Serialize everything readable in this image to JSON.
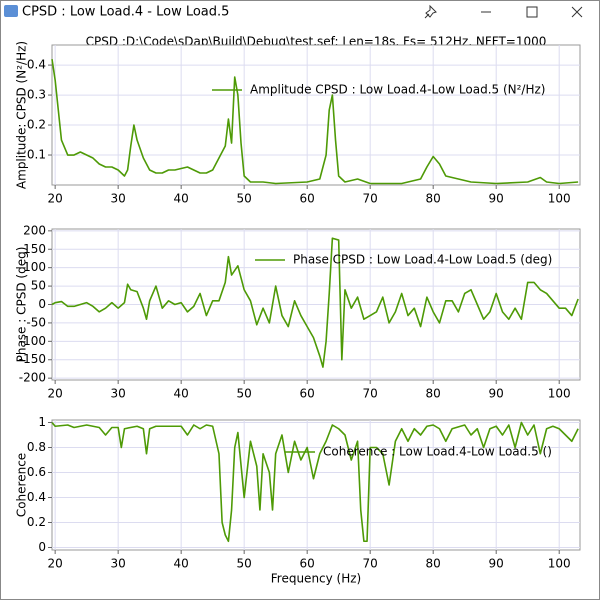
{
  "window": {
    "title": "CPSD : Low Load.4 - Low Load.5",
    "subtitle": "CPSD :D:\\Code\\sDap\\Build\\Debug\\test.sef: Len=18s, Fs= 512Hz, NFFT=1000"
  },
  "chart_data": [
    {
      "type": "line",
      "y_label": "Amplitude: CPSD (N²/Hz)",
      "x": [
        19.5,
        20,
        21,
        22,
        23,
        24,
        25,
        26,
        27,
        28,
        29,
        30,
        31,
        31.5,
        32,
        32.5,
        33,
        34,
        35,
        36,
        37,
        38,
        39,
        40,
        41,
        42,
        43,
        44,
        45,
        46,
        47,
        47.5,
        48,
        48.5,
        49,
        49.5,
        50,
        51,
        53,
        55,
        60,
        62,
        63,
        63.5,
        64,
        64.5,
        65,
        66,
        68,
        70,
        75,
        78,
        79,
        80,
        81,
        82,
        84,
        86,
        90,
        95,
        97,
        98,
        100,
        103
      ],
      "series": [
        {
          "name": "Amplitude CPSD : Low Load.4-Low Load.5 (N²/Hz)",
          "color": "#4e9a06",
          "values": [
            0.42,
            0.35,
            0.15,
            0.1,
            0.1,
            0.11,
            0.1,
            0.09,
            0.07,
            0.06,
            0.06,
            0.05,
            0.03,
            0.05,
            0.13,
            0.2,
            0.15,
            0.09,
            0.05,
            0.04,
            0.04,
            0.05,
            0.05,
            0.055,
            0.06,
            0.05,
            0.04,
            0.04,
            0.05,
            0.09,
            0.13,
            0.22,
            0.14,
            0.36,
            0.3,
            0.14,
            0.03,
            0.01,
            0.01,
            0.005,
            0.01,
            0.02,
            0.1,
            0.25,
            0.3,
            0.15,
            0.03,
            0.01,
            0.02,
            0.005,
            0.005,
            0.02,
            0.06,
            0.095,
            0.07,
            0.03,
            0.02,
            0.01,
            0.005,
            0.01,
            0.025,
            0.01,
            0.005,
            0.01
          ]
        }
      ],
      "xlim": [
        19.5,
        103.3
      ],
      "xticks": [
        20,
        30,
        40,
        50,
        60,
        70,
        80,
        90,
        100
      ],
      "ylim": [
        0,
        0.467
      ],
      "yticks": [
        0.1,
        0.2,
        0.3,
        0.4
      ],
      "grid": true
    },
    {
      "type": "line",
      "y_label": "Phase : CPSD (deg)",
      "x": [
        19.5,
        20,
        21,
        22,
        23,
        25,
        26,
        27,
        28,
        29,
        30,
        31,
        31.5,
        32,
        33,
        34,
        34.5,
        35,
        36,
        37,
        38,
        39,
        40,
        41,
        42,
        43,
        44,
        45,
        46,
        47,
        47.5,
        48,
        49,
        50,
        51,
        52,
        53,
        54,
        55,
        56,
        57,
        58,
        59,
        60,
        61,
        62,
        62.5,
        63,
        63.5,
        64,
        65,
        65.5,
        66,
        67,
        68,
        69,
        70,
        71,
        72,
        73,
        74,
        75,
        76,
        77,
        78,
        79,
        80,
        81,
        82,
        83,
        84,
        85,
        86,
        87,
        88,
        89,
        90,
        91,
        92,
        93,
        94,
        95,
        96,
        97,
        98,
        99,
        100,
        101,
        102,
        103
      ],
      "series": [
        {
          "name": "Phase CPSD : Low Load.4-Low Load.5 (deg)",
          "color": "#4e9a06",
          "values": [
            0,
            5,
            8,
            -5,
            -5,
            5,
            -5,
            -20,
            -10,
            5,
            -10,
            5,
            55,
            40,
            35,
            -10,
            -40,
            10,
            50,
            -10,
            10,
            0,
            5,
            -20,
            -5,
            30,
            -30,
            10,
            10,
            60,
            130,
            80,
            105,
            40,
            10,
            -55,
            -10,
            -50,
            50,
            -30,
            -60,
            10,
            -30,
            -60,
            -90,
            -140,
            -170,
            -100,
            30,
            180,
            175,
            -150,
            40,
            -10,
            20,
            -40,
            -30,
            -20,
            20,
            -50,
            -20,
            30,
            -30,
            -10,
            -60,
            20,
            -20,
            -50,
            10,
            10,
            -20,
            30,
            40,
            0,
            -40,
            -20,
            30,
            -20,
            -40,
            -10,
            -40,
            60,
            60,
            40,
            30,
            10,
            -10,
            -10,
            -30,
            15
          ]
        }
      ],
      "xlim": [
        19.5,
        103.3
      ],
      "xticks": [
        20,
        30,
        40,
        50,
        60,
        70,
        80,
        90,
        100
      ],
      "ylim": [
        -205,
        205
      ],
      "yticks": [
        -200,
        -150,
        -100,
        -50,
        0,
        50,
        100,
        150,
        200
      ],
      "grid": true
    },
    {
      "type": "line",
      "y_label": "Coherence",
      "x_label": "Frequency (Hz)",
      "x": [
        19.5,
        20,
        22,
        23,
        25,
        27,
        28,
        29,
        30,
        30.5,
        31,
        33,
        34,
        34.5,
        35,
        36,
        40,
        41,
        42,
        43,
        44,
        45,
        46,
        46.5,
        47,
        47.5,
        48,
        48.5,
        49,
        50,
        51,
        52,
        52.5,
        53,
        54,
        54.5,
        55,
        56,
        57,
        58,
        59,
        60,
        61,
        62,
        63,
        64,
        65,
        66,
        67,
        68,
        68.5,
        69,
        69.5,
        70,
        71,
        72,
        73,
        74,
        75,
        76,
        77,
        78,
        79,
        80,
        81,
        82,
        83,
        85,
        86,
        87,
        88,
        89,
        90,
        91,
        92,
        93,
        94,
        95,
        96,
        97,
        98,
        99,
        100,
        101,
        102,
        103
      ],
      "series": [
        {
          "name": "Coherence : Low Load.4-Low Load.5 ()",
          "color": "#4e9a06",
          "values": [
            1,
            0.97,
            0.98,
            0.96,
            0.98,
            0.96,
            0.9,
            0.96,
            0.96,
            0.8,
            0.95,
            0.97,
            0.95,
            0.75,
            0.95,
            0.97,
            0.97,
            0.9,
            0.98,
            0.95,
            0.98,
            0.97,
            0.75,
            0.2,
            0.1,
            0.05,
            0.3,
            0.8,
            0.92,
            0.4,
            0.85,
            0.65,
            0.3,
            0.75,
            0.6,
            0.3,
            0.75,
            0.9,
            0.6,
            0.85,
            0.7,
            0.8,
            0.55,
            0.75,
            0.85,
            0.98,
            0.95,
            0.9,
            0.7,
            0.85,
            0.3,
            0.05,
            0.05,
            0.8,
            0.8,
            0.75,
            0.5,
            0.85,
            0.95,
            0.85,
            0.95,
            0.9,
            0.97,
            0.98,
            0.95,
            0.85,
            0.95,
            0.98,
            0.9,
            0.95,
            0.8,
            0.95,
            0.97,
            0.9,
            0.98,
            0.8,
            1,
            0.9,
            0.98,
            0.75,
            0.95,
            0.97,
            0.95,
            0.9,
            0.85,
            0.95
          ]
        }
      ],
      "xlim": [
        19.5,
        103.3
      ],
      "xticks": [
        20,
        30,
        40,
        50,
        60,
        70,
        80,
        90,
        100
      ],
      "ylim": [
        -0.02,
        1.02
      ],
      "yticks": [
        0,
        0.2,
        0.4,
        0.6,
        0.8,
        1
      ],
      "grid": true
    }
  ]
}
